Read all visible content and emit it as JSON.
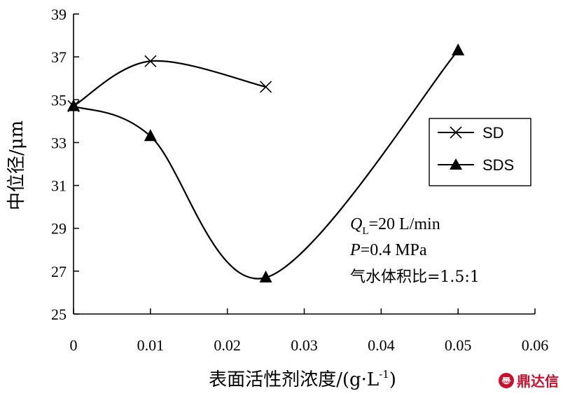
{
  "chart_data": {
    "type": "line",
    "title": "",
    "xlabel": "表面活性剂浓度/(g·L",
    "xlabel_sup": "-1",
    "xlabel_close": ")",
    "ylabel": "中位径/μm",
    "xlim": [
      0,
      0.06
    ],
    "ylim": [
      25,
      39
    ],
    "x_ticks": [
      0,
      0.01,
      0.02,
      0.03,
      0.04,
      0.05,
      0.06
    ],
    "x_tick_labels": [
      "0",
      "0.01",
      "0.02",
      "0.03",
      "0.04",
      "0.05",
      "0.06"
    ],
    "y_ticks": [
      25,
      27,
      29,
      31,
      33,
      35,
      37,
      39
    ],
    "y_tick_labels": [
      "25",
      "27",
      "29",
      "31",
      "33",
      "35",
      "37",
      "39"
    ],
    "grid": false,
    "legend_position": "right",
    "series": [
      {
        "name": "SD",
        "marker": "x",
        "x": [
          0,
          0.01,
          0.025
        ],
        "values": [
          34.7,
          36.8,
          35.6
        ]
      },
      {
        "name": "SDS",
        "marker": "triangle",
        "x": [
          0,
          0.01,
          0.025,
          0.05
        ],
        "values": [
          34.7,
          33.3,
          26.7,
          37.3
        ]
      }
    ],
    "annotations": {
      "q_symbol": "Q",
      "q_subscript": "L",
      "q_value": "=20 L/min",
      "p_symbol": "P",
      "p_value": "=0.4 MPa",
      "ratio": "气水体积比=1.5:1"
    }
  },
  "watermark": {
    "logo_glyph": "〠",
    "text": "鼎达信"
  }
}
